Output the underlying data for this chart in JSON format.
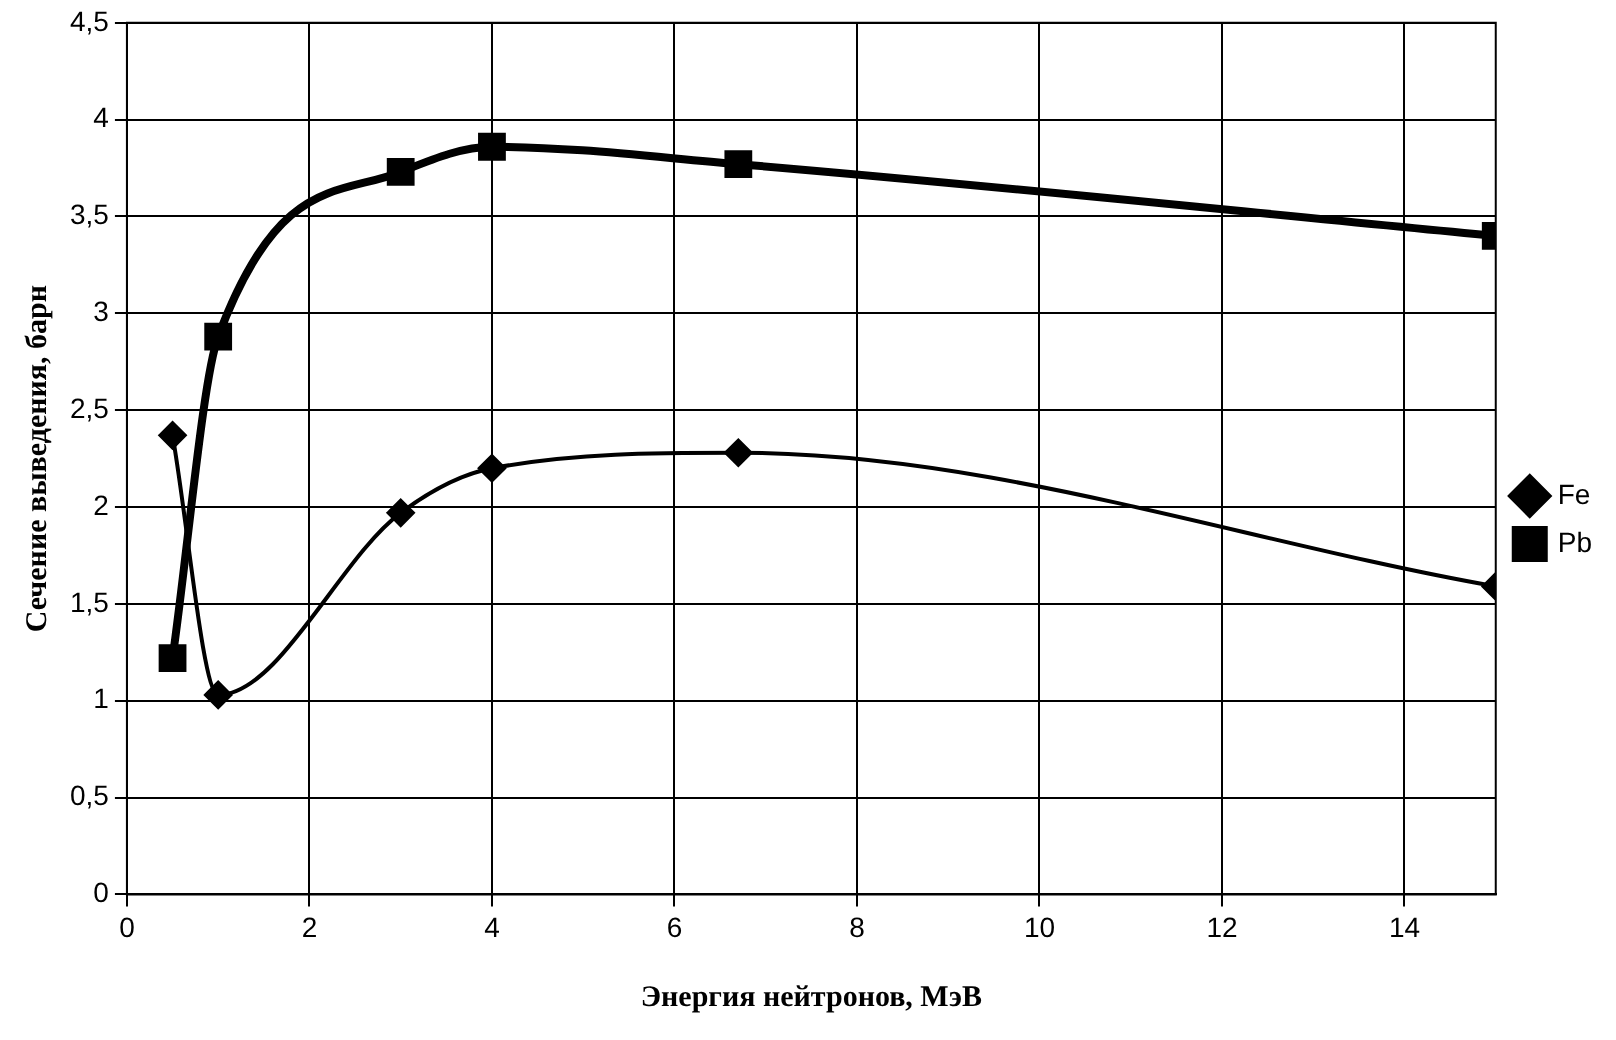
{
  "chart_data": {
    "type": "line",
    "xlabel": "Энергия нейтронов, МэВ",
    "ylabel": "Сечение выведения, барн",
    "xlim": [
      0,
      15
    ],
    "xticks": [
      0,
      2,
      4,
      6,
      8,
      10,
      12,
      14
    ],
    "ylim": [
      0,
      4.5
    ],
    "yticks": [
      0,
      {
        "value": 0.5,
        "label": "0,5"
      },
      1,
      {
        "value": 1.5,
        "label": "1,5"
      },
      2,
      {
        "value": 2.5,
        "label": "2,5"
      },
      3,
      {
        "value": 3.5,
        "label": "3,5"
      },
      4,
      {
        "value": 4.5,
        "label": "4,5"
      }
    ],
    "grid": true,
    "legend": "right",
    "series": [
      {
        "name": "Fe",
        "color": "#000000",
        "marker": "diamond",
        "x": [
          0.5,
          1,
          3,
          4,
          6.7,
          15
        ],
        "values": [
          2.37,
          1.03,
          1.97,
          2.2,
          2.28,
          1.59
        ]
      },
      {
        "name": "Pb",
        "color": "#000000",
        "marker": "square",
        "x": [
          0.5,
          1,
          3,
          4,
          6.7,
          15
        ],
        "values": [
          1.22,
          2.88,
          3.73,
          3.86,
          3.77,
          3.4
        ]
      }
    ]
  }
}
